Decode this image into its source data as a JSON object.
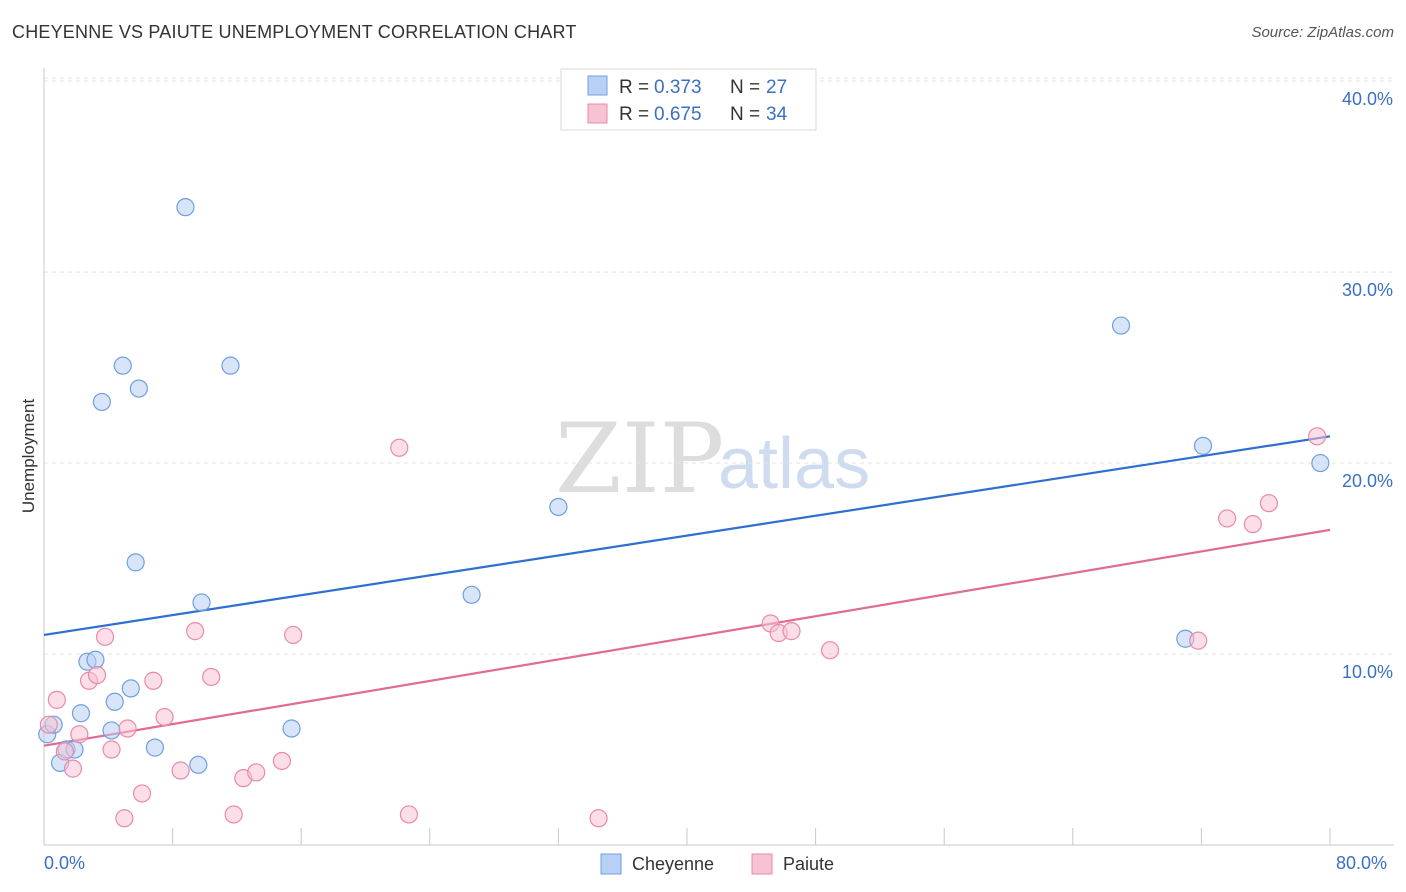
{
  "title": "CHEYENNE VS PAIUTE UNEMPLOYMENT CORRELATION CHART",
  "source": "Source: ZipAtlas.com",
  "watermark": {
    "zip": "ZIP",
    "atlas": "atlas"
  },
  "chart_data": {
    "type": "scatter",
    "title": "CHEYENNE VS PAIUTE UNEMPLOYMENT CORRELATION CHART",
    "xlabel": "",
    "ylabel": "Unemployment",
    "xlim": [
      0,
      80
    ],
    "ylim": [
      0,
      41
    ],
    "x_tick_labels": {
      "min": "0.0%",
      "max": "80.0%"
    },
    "y_ticks": [
      10,
      20,
      30,
      40
    ],
    "y_tick_labels": [
      "10.0%",
      "20.0%",
      "30.0%",
      "40.0%"
    ],
    "grid": true,
    "legend_position": "top-center",
    "series": [
      {
        "name": "Cheyenne",
        "color": "#6f9fe0",
        "fill": "#b8d0f3",
        "line_color": "#2f6fcf",
        "R": "0.373",
        "N": "27",
        "trend": {
          "x0": 0,
          "y0": 11.0,
          "x1": 80,
          "y1": 21.4
        },
        "points": [
          [
            0.2,
            5.8
          ],
          [
            0.6,
            6.3
          ],
          [
            1.0,
            4.3
          ],
          [
            1.4,
            5.0
          ],
          [
            1.9,
            5.0
          ],
          [
            2.3,
            6.9
          ],
          [
            2.7,
            9.6
          ],
          [
            3.2,
            9.7
          ],
          [
            3.6,
            23.2
          ],
          [
            4.4,
            7.5
          ],
          [
            4.2,
            6.0
          ],
          [
            4.9,
            25.1
          ],
          [
            5.4,
            8.2
          ],
          [
            5.7,
            14.8
          ],
          [
            5.9,
            23.9
          ],
          [
            6.9,
            5.1
          ],
          [
            8.8,
            33.4
          ],
          [
            9.6,
            4.2
          ],
          [
            9.8,
            12.7
          ],
          [
            11.6,
            25.1
          ],
          [
            15.4,
            6.1
          ],
          [
            26.6,
            13.1
          ],
          [
            32.0,
            17.7
          ],
          [
            67.0,
            27.2
          ],
          [
            71.0,
            10.8
          ],
          [
            72.1,
            20.9
          ],
          [
            79.4,
            20.0
          ]
        ]
      },
      {
        "name": "Paiute",
        "color": "#e98aaa",
        "fill": "#f7c3d3",
        "line_color": "#e06c96",
        "R": "0.675",
        "N": "34",
        "trend": {
          "x0": 0,
          "y0": 5.2,
          "x1": 80,
          "y1": 16.5
        },
        "points": [
          [
            0.3,
            6.3
          ],
          [
            0.8,
            7.6
          ],
          [
            1.3,
            4.9
          ],
          [
            1.8,
            4.0
          ],
          [
            2.2,
            5.8
          ],
          [
            2.8,
            8.6
          ],
          [
            3.3,
            8.9
          ],
          [
            3.8,
            10.9
          ],
          [
            4.2,
            5.0
          ],
          [
            5.0,
            1.4
          ],
          [
            5.2,
            6.1
          ],
          [
            6.1,
            2.7
          ],
          [
            6.8,
            8.6
          ],
          [
            7.5,
            6.7
          ],
          [
            8.5,
            3.9
          ],
          [
            9.4,
            11.2
          ],
          [
            10.4,
            8.8
          ],
          [
            11.8,
            1.6
          ],
          [
            12.4,
            3.5
          ],
          [
            13.2,
            3.8
          ],
          [
            14.8,
            4.4
          ],
          [
            15.5,
            11.0
          ],
          [
            22.1,
            20.8
          ],
          [
            22.7,
            1.6
          ],
          [
            34.5,
            1.4
          ],
          [
            45.2,
            11.6
          ],
          [
            45.7,
            11.1
          ],
          [
            46.5,
            11.2
          ],
          [
            48.9,
            10.2
          ],
          [
            71.8,
            10.7
          ],
          [
            73.6,
            17.1
          ],
          [
            75.2,
            16.8
          ],
          [
            76.2,
            17.9
          ],
          [
            79.2,
            21.4
          ]
        ]
      }
    ]
  }
}
